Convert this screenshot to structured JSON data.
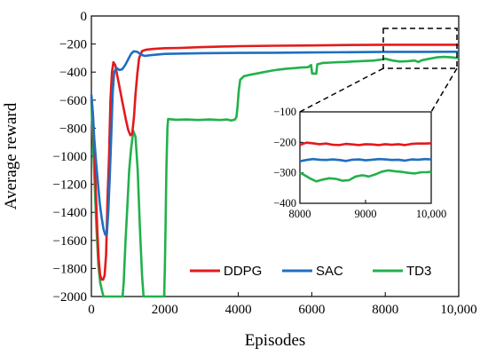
{
  "chart_data": {
    "type": "line",
    "xlabel": "Episodes",
    "ylabel": "Average reward",
    "xlim": [
      0,
      10000
    ],
    "ylim": [
      -2000,
      0
    ],
    "xticks": [
      0,
      2000,
      4000,
      6000,
      8000,
      10000
    ],
    "xtick_labels": [
      "0",
      "2000",
      "4000",
      "6000",
      "8000",
      "10,000"
    ],
    "yticks": [
      0,
      -200,
      -400,
      -600,
      -800,
      -1000,
      -1200,
      -1400,
      -1600,
      -1800,
      -2000
    ],
    "ytick_labels": [
      "0",
      "−200",
      "−400",
      "−600",
      "−800",
      "−1000",
      "−1200",
      "−1400",
      "−1600",
      "−1800",
      "−2000"
    ],
    "grid": false,
    "legend_position": "bottom",
    "series": [
      {
        "name": "DDPG",
        "color": "#e31a1c",
        "points": [
          [
            0,
            -580
          ],
          [
            40,
            -700
          ],
          [
            80,
            -960
          ],
          [
            120,
            -1250
          ],
          [
            160,
            -1520
          ],
          [
            200,
            -1740
          ],
          [
            240,
            -1850
          ],
          [
            280,
            -1880
          ],
          [
            320,
            -1880
          ],
          [
            360,
            -1850
          ],
          [
            400,
            -1700
          ],
          [
            440,
            -1300
          ],
          [
            480,
            -1000
          ],
          [
            520,
            -600
          ],
          [
            560,
            -400
          ],
          [
            600,
            -330
          ],
          [
            650,
            -350
          ],
          [
            700,
            -420
          ],
          [
            760,
            -500
          ],
          [
            820,
            -580
          ],
          [
            880,
            -660
          ],
          [
            940,
            -740
          ],
          [
            1000,
            -810
          ],
          [
            1060,
            -850
          ],
          [
            1110,
            -840
          ],
          [
            1160,
            -720
          ],
          [
            1200,
            -560
          ],
          [
            1250,
            -410
          ],
          [
            1300,
            -300
          ],
          [
            1380,
            -250
          ],
          [
            1500,
            -240
          ],
          [
            1700,
            -235
          ],
          [
            2000,
            -230
          ],
          [
            2400,
            -228
          ],
          [
            3000,
            -222
          ],
          [
            4000,
            -215
          ],
          [
            5000,
            -212
          ],
          [
            6000,
            -210
          ],
          [
            7000,
            -207
          ],
          [
            8000,
            -205
          ],
          [
            9000,
            -205
          ],
          [
            10000,
            -205
          ]
        ]
      },
      {
        "name": "SAC",
        "color": "#1f6fbf",
        "points": [
          [
            0,
            -560
          ],
          [
            40,
            -700
          ],
          [
            80,
            -880
          ],
          [
            130,
            -1050
          ],
          [
            180,
            -1200
          ],
          [
            230,
            -1340
          ],
          [
            280,
            -1440
          ],
          [
            330,
            -1520
          ],
          [
            380,
            -1560
          ],
          [
            420,
            -1560
          ],
          [
            460,
            -1400
          ],
          [
            500,
            -1150
          ],
          [
            540,
            -850
          ],
          [
            580,
            -550
          ],
          [
            620,
            -400
          ],
          [
            680,
            -370
          ],
          [
            760,
            -385
          ],
          [
            840,
            -380
          ],
          [
            920,
            -350
          ],
          [
            1000,
            -310
          ],
          [
            1080,
            -270
          ],
          [
            1150,
            -252
          ],
          [
            1250,
            -256
          ],
          [
            1350,
            -275
          ],
          [
            1450,
            -285
          ],
          [
            1600,
            -280
          ],
          [
            1800,
            -275
          ],
          [
            2000,
            -270
          ],
          [
            2500,
            -268
          ],
          [
            3000,
            -265
          ],
          [
            4000,
            -263
          ],
          [
            5000,
            -262
          ],
          [
            6000,
            -260
          ],
          [
            7000,
            -258
          ],
          [
            8000,
            -256
          ],
          [
            9000,
            -256
          ],
          [
            10000,
            -255
          ]
        ]
      },
      {
        "name": "TD3",
        "color": "#22b14c",
        "points": [
          [
            0,
            -600
          ],
          [
            40,
            -880
          ],
          [
            90,
            -1200
          ],
          [
            140,
            -1520
          ],
          [
            190,
            -1780
          ],
          [
            240,
            -1900
          ],
          [
            290,
            -1960
          ],
          [
            330,
            -2000
          ],
          [
            850,
            -2000
          ],
          [
            880,
            -1900
          ],
          [
            930,
            -1600
          ],
          [
            980,
            -1350
          ],
          [
            1030,
            -1100
          ],
          [
            1080,
            -950
          ],
          [
            1140,
            -820
          ],
          [
            1200,
            -860
          ],
          [
            1260,
            -1100
          ],
          [
            1320,
            -1500
          ],
          [
            1380,
            -1850
          ],
          [
            1420,
            -2000
          ],
          [
            1980,
            -2000
          ],
          [
            2000,
            -1800
          ],
          [
            2020,
            -1500
          ],
          [
            2040,
            -1100
          ],
          [
            2070,
            -800
          ],
          [
            2090,
            -735
          ],
          [
            2300,
            -740
          ],
          [
            2600,
            -738
          ],
          [
            2900,
            -742
          ],
          [
            3200,
            -738
          ],
          [
            3500,
            -742
          ],
          [
            3700,
            -738
          ],
          [
            3800,
            -745
          ],
          [
            3900,
            -740
          ],
          [
            3950,
            -720
          ],
          [
            3980,
            -640
          ],
          [
            4010,
            -540
          ],
          [
            4050,
            -455
          ],
          [
            4150,
            -430
          ],
          [
            4300,
            -420
          ],
          [
            4500,
            -410
          ],
          [
            4700,
            -400
          ],
          [
            4900,
            -390
          ],
          [
            5100,
            -382
          ],
          [
            5300,
            -376
          ],
          [
            5500,
            -372
          ],
          [
            5700,
            -368
          ],
          [
            5900,
            -365
          ],
          [
            5980,
            -350
          ],
          [
            6010,
            -410
          ],
          [
            6120,
            -412
          ],
          [
            6150,
            -345
          ],
          [
            6300,
            -335
          ],
          [
            6500,
            -332
          ],
          [
            6700,
            -330
          ],
          [
            6900,
            -328
          ],
          [
            7100,
            -325
          ],
          [
            7300,
            -322
          ],
          [
            7500,
            -320
          ],
          [
            7700,
            -318
          ],
          [
            7900,
            -310
          ],
          [
            8000,
            -305
          ],
          [
            8200,
            -318
          ],
          [
            8400,
            -325
          ],
          [
            8600,
            -322
          ],
          [
            8800,
            -318
          ],
          [
            8900,
            -328
          ],
          [
            9000,
            -315
          ],
          [
            9200,
            -305
          ],
          [
            9400,
            -295
          ],
          [
            9600,
            -292
          ],
          [
            9800,
            -295
          ],
          [
            10000,
            -300
          ]
        ]
      }
    ],
    "inset": {
      "xlim": [
        8000,
        10000
      ],
      "ylim": [
        -400,
        -100
      ],
      "xticks": [
        8000,
        9000,
        10000
      ],
      "xtick_labels": [
        "8000",
        "9000",
        "10,000"
      ],
      "yticks": [
        -100,
        -200,
        -300,
        -400
      ],
      "ytick_labels": [
        "−100",
        "−200",
        "−300",
        "−400"
      ],
      "series": [
        {
          "name": "DDPG",
          "color": "#e31a1c",
          "points": [
            [
              8000,
              -208
            ],
            [
              8100,
              -201
            ],
            [
              8200,
              -203
            ],
            [
              8300,
              -206
            ],
            [
              8400,
              -204
            ],
            [
              8500,
              -208
            ],
            [
              8600,
              -209
            ],
            [
              8700,
              -205
            ],
            [
              8800,
              -207
            ],
            [
              8900,
              -209
            ],
            [
              9000,
              -206
            ],
            [
              9100,
              -207
            ],
            [
              9200,
              -209
            ],
            [
              9300,
              -206
            ],
            [
              9400,
              -208
            ],
            [
              9500,
              -206
            ],
            [
              9600,
              -209
            ],
            [
              9700,
              -205
            ],
            [
              9800,
              -204
            ],
            [
              9900,
              -204
            ],
            [
              10000,
              -203
            ]
          ]
        },
        {
          "name": "SAC",
          "color": "#1f6fbf",
          "points": [
            [
              8000,
              -262
            ],
            [
              8100,
              -258
            ],
            [
              8200,
              -255
            ],
            [
              8300,
              -257
            ],
            [
              8400,
              -258
            ],
            [
              8500,
              -256
            ],
            [
              8600,
              -258
            ],
            [
              8700,
              -261
            ],
            [
              8800,
              -257
            ],
            [
              8900,
              -256
            ],
            [
              9000,
              -259
            ],
            [
              9100,
              -257
            ],
            [
              9200,
              -255
            ],
            [
              9300,
              -256
            ],
            [
              9400,
              -258
            ],
            [
              9500,
              -257
            ],
            [
              9600,
              -260
            ],
            [
              9700,
              -256
            ],
            [
              9800,
              -257
            ],
            [
              9900,
              -255
            ],
            [
              10000,
              -256
            ]
          ]
        },
        {
          "name": "TD3",
          "color": "#22b14c",
          "points": [
            [
              8000,
              -300
            ],
            [
              8050,
              -305
            ],
            [
              8150,
              -318
            ],
            [
              8250,
              -328
            ],
            [
              8350,
              -322
            ],
            [
              8450,
              -318
            ],
            [
              8550,
              -320
            ],
            [
              8650,
              -326
            ],
            [
              8750,
              -324
            ],
            [
              8850,
              -312
            ],
            [
              8950,
              -308
            ],
            [
              9050,
              -312
            ],
            [
              9150,
              -305
            ],
            [
              9250,
              -296
            ],
            [
              9350,
              -292
            ],
            [
              9450,
              -295
            ],
            [
              9550,
              -297
            ],
            [
              9650,
              -300
            ],
            [
              9750,
              -302
            ],
            [
              9850,
              -298
            ],
            [
              9950,
              -298
            ],
            [
              10000,
              -296
            ]
          ]
        }
      ]
    }
  }
}
